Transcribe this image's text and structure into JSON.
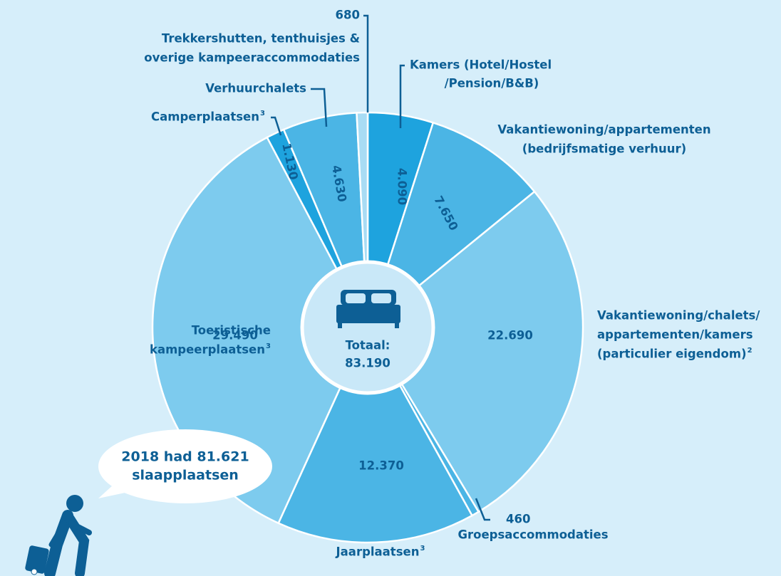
{
  "chart_data": {
    "type": "pie",
    "categories": [
      [
        "Kamers (Hotel/Hostel",
        "/Pension/B&B)"
      ],
      [
        "Vakantiewoning/appartementen",
        "(bedrijfsmatige verhuur)"
      ],
      [
        "Vakantiewoning/chalets/",
        "appartementen/kamers",
        "(particulier eigendom)"
      ],
      [
        "Groepsaccommodaties"
      ],
      [
        "Jaarplaatsen"
      ],
      [
        "Toeristische",
        "kampeerplaatsen"
      ],
      [
        "Camperplaatsen"
      ],
      [
        "Verhuurchalets"
      ],
      [
        "Trekkershutten, tenthuisjes &",
        "overige kampeeraccommodaties"
      ]
    ],
    "category_notes": [
      null,
      null,
      "2",
      null,
      "3",
      "3",
      "3",
      null,
      null
    ],
    "values": [
      4090,
      7650,
      22690,
      460,
      12370,
      29490,
      1130,
      4630,
      680
    ],
    "value_labels": [
      "4.090",
      "7.650",
      "22.690",
      "460",
      "12.370",
      "29.490",
      "1.130",
      "4.630",
      "680"
    ],
    "colors": [
      "#1ea3de",
      "#4bb5e5",
      "#7dcbee",
      "#4bb5e5",
      "#4bb5e5",
      "#7dcbee",
      "#1ea3de",
      "#4bb5e5",
      "#a8dcf4"
    ],
    "total": {
      "label": "Totaal:",
      "value": 83190,
      "value_label": "83.190"
    },
    "annotation": [
      "2018 had 81.621",
      "slaapplaatsen"
    ]
  }
}
